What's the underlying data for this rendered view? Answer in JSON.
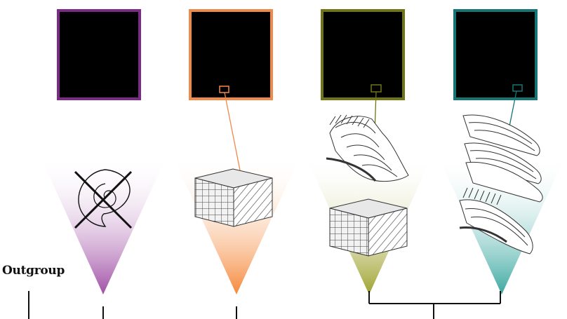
{
  "outgroup_label": "Outgroup",
  "clades": [
    {
      "frame_color": "#7b2a86",
      "fade_color": "#a46bb0",
      "icon": "crossed-shell-icon"
    },
    {
      "frame_color": "#f08a4b",
      "fade_color": "#f59a62",
      "icon": "crossed-lamellar-block-icon"
    },
    {
      "frame_color": "#6f7516",
      "fade_color": "#9ea53a",
      "icon": "aragonite-rod-ribbons-icon"
    },
    {
      "frame_color": "#167475",
      "fade_color": "#3ea7a2",
      "icon": "rod-ribbons-stack-icon"
    }
  ],
  "tree_color": "#111111"
}
